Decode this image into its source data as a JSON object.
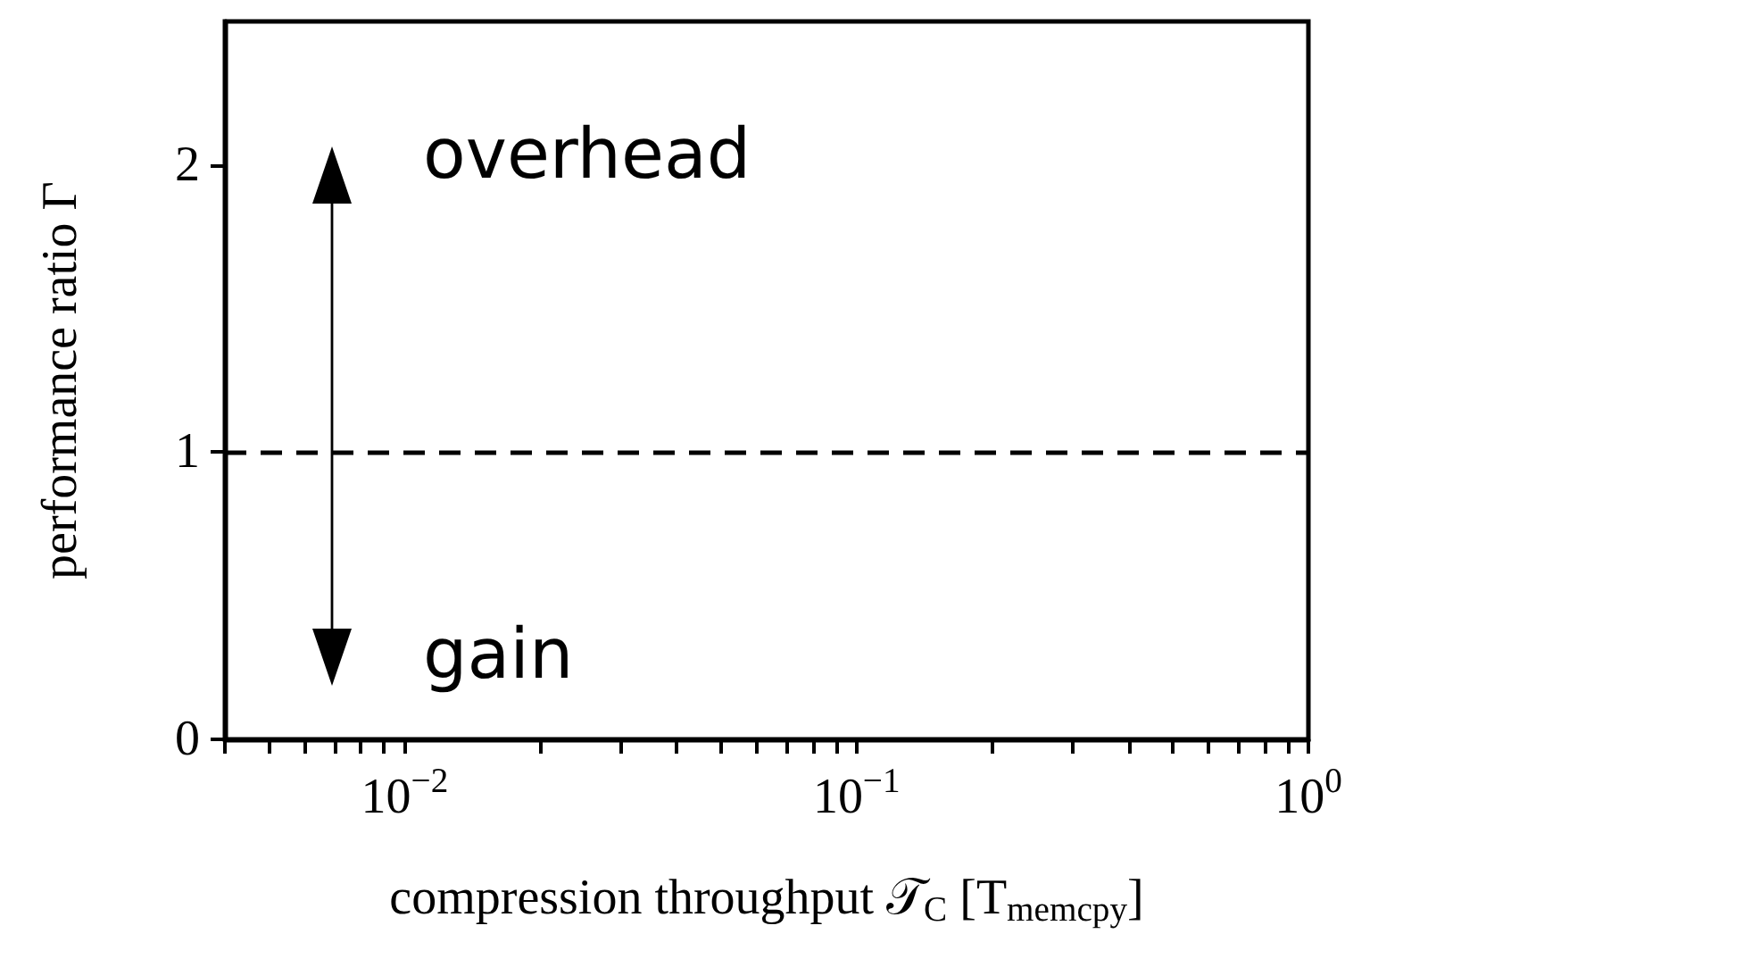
{
  "chart_data": {
    "type": "line",
    "xlabel": "compression throughput 𝒯$_{C}$ [T$_{memcpy}$]",
    "ylabel": "performance ratio Γ",
    "log": "x",
    "xlim": [
      0.004,
      1
    ],
    "ylim": [
      0,
      2.5
    ],
    "xticks": [
      {
        "value": 0.004,
        "label": null
      },
      {
        "value": 0.005,
        "label": null
      },
      {
        "value": 0.006,
        "label": null
      },
      {
        "value": 0.007,
        "label": null
      },
      {
        "value": 0.008,
        "label": null
      },
      {
        "value": 0.009,
        "label": null
      },
      {
        "value": 0.01,
        "label": "10$^{−2}$"
      },
      {
        "value": 0.02,
        "label": null
      },
      {
        "value": 0.03,
        "label": null
      },
      {
        "value": 0.04,
        "label": null
      },
      {
        "value": 0.05,
        "label": null
      },
      {
        "value": 0.06,
        "label": null
      },
      {
        "value": 0.07,
        "label": null
      },
      {
        "value": 0.08,
        "label": null
      },
      {
        "value": 0.09,
        "label": null
      },
      {
        "value": 0.1,
        "label": "10$^{−1}$"
      },
      {
        "value": 0.2,
        "label": null
      },
      {
        "value": 0.3,
        "label": null
      },
      {
        "value": 0.4,
        "label": null
      },
      {
        "value": 0.5,
        "label": null
      },
      {
        "value": 0.6,
        "label": null
      },
      {
        "value": 0.7,
        "label": null
      },
      {
        "value": 0.8,
        "label": null
      },
      {
        "value": 0.9,
        "label": null
      },
      {
        "value": 1,
        "label": "10$^{0}$"
      }
    ],
    "yticks": [
      0,
      1,
      2
    ],
    "grid": false,
    "ref_lines": [
      {
        "axis": "y",
        "value": 1,
        "color": "#000000",
        "line_style": "dashed"
      }
    ],
    "annotations": [
      "overhead",
      "gain"
    ]
  }
}
